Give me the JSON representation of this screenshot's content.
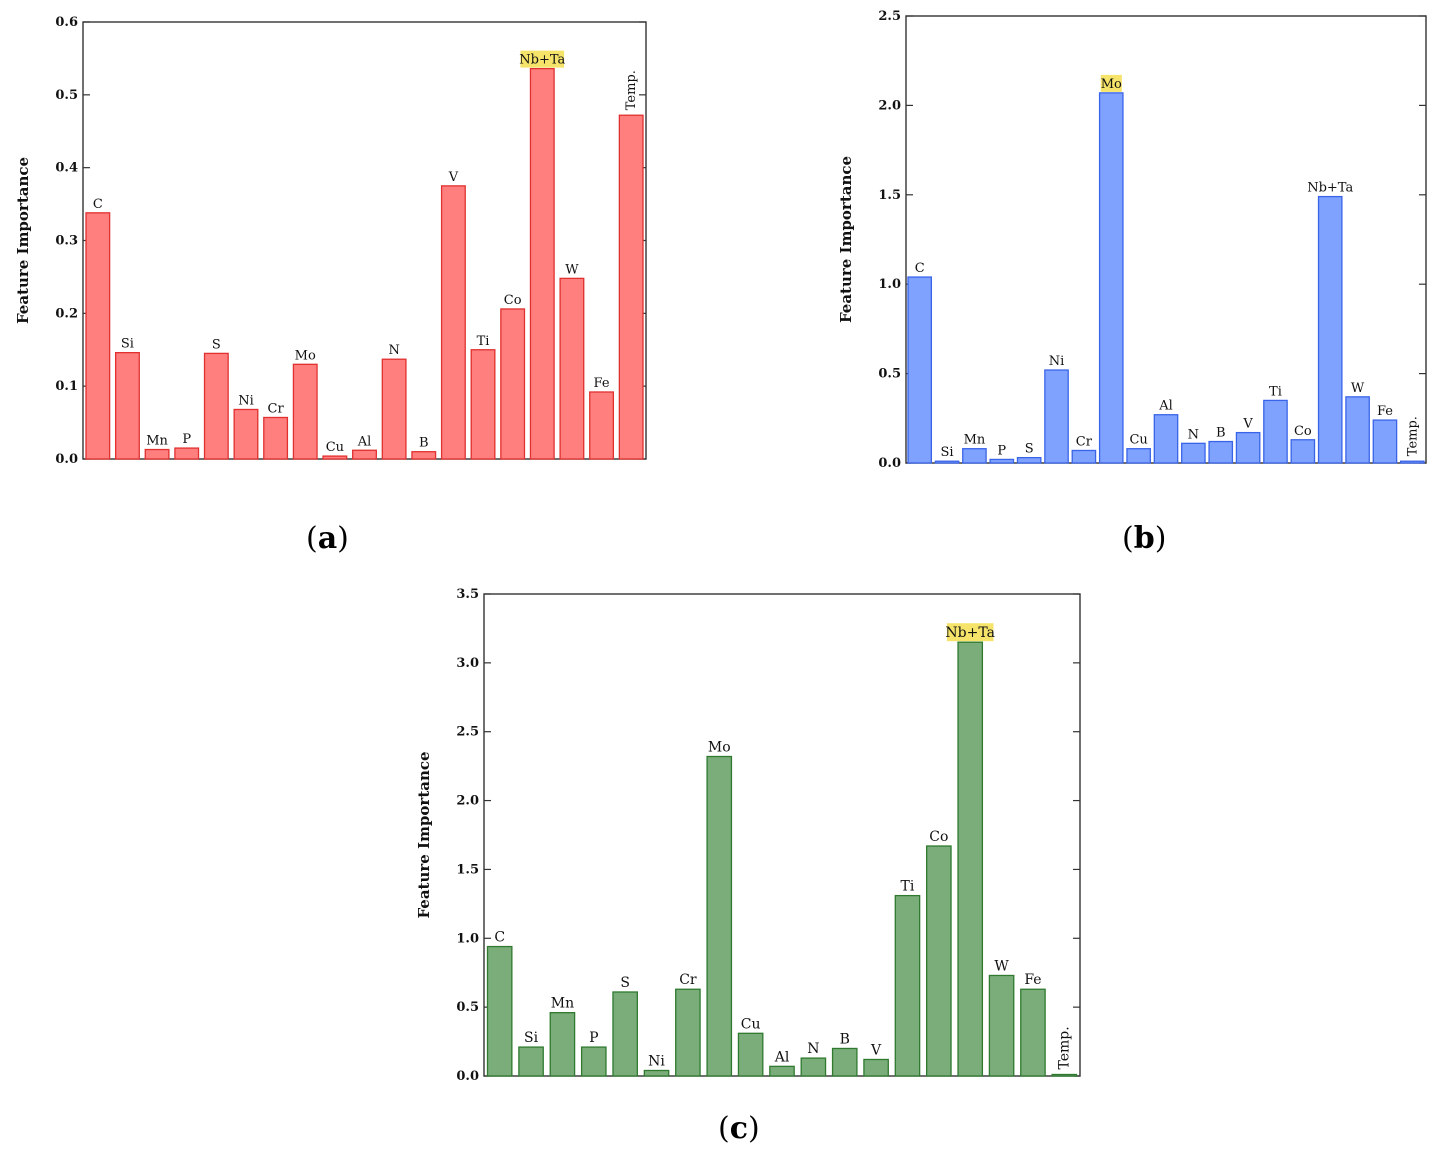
{
  "captions": {
    "a": [
      "(",
      "a",
      ")"
    ],
    "b": [
      "(",
      "b",
      ")"
    ],
    "c": [
      "(",
      "c",
      ")"
    ]
  },
  "chart_data": [
    {
      "id": "a",
      "type": "bar",
      "ylabel": "Feature Importance",
      "xlabel": "",
      "title": "",
      "ylim": [
        0,
        0.6
      ],
      "yticks": [
        "0.0",
        "0.1",
        "0.2",
        "0.3",
        "0.4",
        "0.5",
        "0.6"
      ],
      "color": "#ff7f7f",
      "edge": "#e0302f",
      "highlight_color": "#f5e36a",
      "categories": [
        "C",
        "Si",
        "Mn",
        "P",
        "S",
        "Ni",
        "Cr",
        "Mo",
        "Cu",
        "Al",
        "N",
        "B",
        "V",
        "Ti",
        "Co",
        "Nb+Ta",
        "W",
        "Fe",
        "Temp."
      ],
      "values": [
        0.338,
        0.146,
        0.013,
        0.015,
        0.145,
        0.068,
        0.057,
        0.13,
        0.004,
        0.012,
        0.137,
        0.01,
        0.375,
        0.15,
        0.206,
        0.536,
        0.248,
        0.092,
        0.472
      ],
      "highlight": [
        "Nb+Ta"
      ],
      "rotated_labels": [
        "Temp."
      ]
    },
    {
      "id": "b",
      "type": "bar",
      "ylabel": "Feature Importance",
      "xlabel": "",
      "title": "",
      "ylim": [
        0,
        2.5
      ],
      "yticks": [
        "0.0",
        "0.5",
        "1.0",
        "1.5",
        "2.0",
        "2.5"
      ],
      "color": "#7fa2ff",
      "edge": "#3a64e8",
      "highlight_color": "#f5e36a",
      "categories": [
        "C",
        "Si",
        "Mn",
        "P",
        "S",
        "Ni",
        "Cr",
        "Mo",
        "Cu",
        "Al",
        "N",
        "B",
        "V",
        "Ti",
        "Co",
        "Nb+Ta",
        "W",
        "Fe",
        "Temp."
      ],
      "values": [
        1.04,
        0.01,
        0.08,
        0.02,
        0.03,
        0.52,
        0.07,
        2.07,
        0.08,
        0.27,
        0.11,
        0.12,
        0.17,
        0.35,
        0.13,
        1.49,
        0.37,
        0.24,
        0.01
      ],
      "highlight": [
        "Mo"
      ],
      "rotated_labels": [
        "Temp."
      ]
    },
    {
      "id": "c",
      "type": "bar",
      "ylabel": "Feature Importance",
      "xlabel": "",
      "title": "",
      "ylim": [
        0,
        3.5
      ],
      "yticks": [
        "0.0",
        "0.5",
        "1.0",
        "1.5",
        "2.0",
        "2.5",
        "3.0",
        "3.5"
      ],
      "color": "#7aad7a",
      "edge": "#2f7a2f",
      "highlight_color": "#f5e36a",
      "categories": [
        "C",
        "Si",
        "Mn",
        "P",
        "S",
        "Ni",
        "Cr",
        "Mo",
        "Cu",
        "Al",
        "N",
        "B",
        "V",
        "Ti",
        "Co",
        "Nb+Ta",
        "W",
        "Fe",
        "Temp."
      ],
      "values": [
        0.94,
        0.21,
        0.46,
        0.21,
        0.61,
        0.04,
        0.63,
        2.32,
        0.31,
        0.07,
        0.13,
        0.2,
        0.12,
        1.31,
        1.67,
        3.15,
        0.73,
        0.63,
        0.01
      ],
      "highlight": [
        "Nb+Ta"
      ],
      "rotated_labels": [
        "Temp."
      ]
    }
  ]
}
